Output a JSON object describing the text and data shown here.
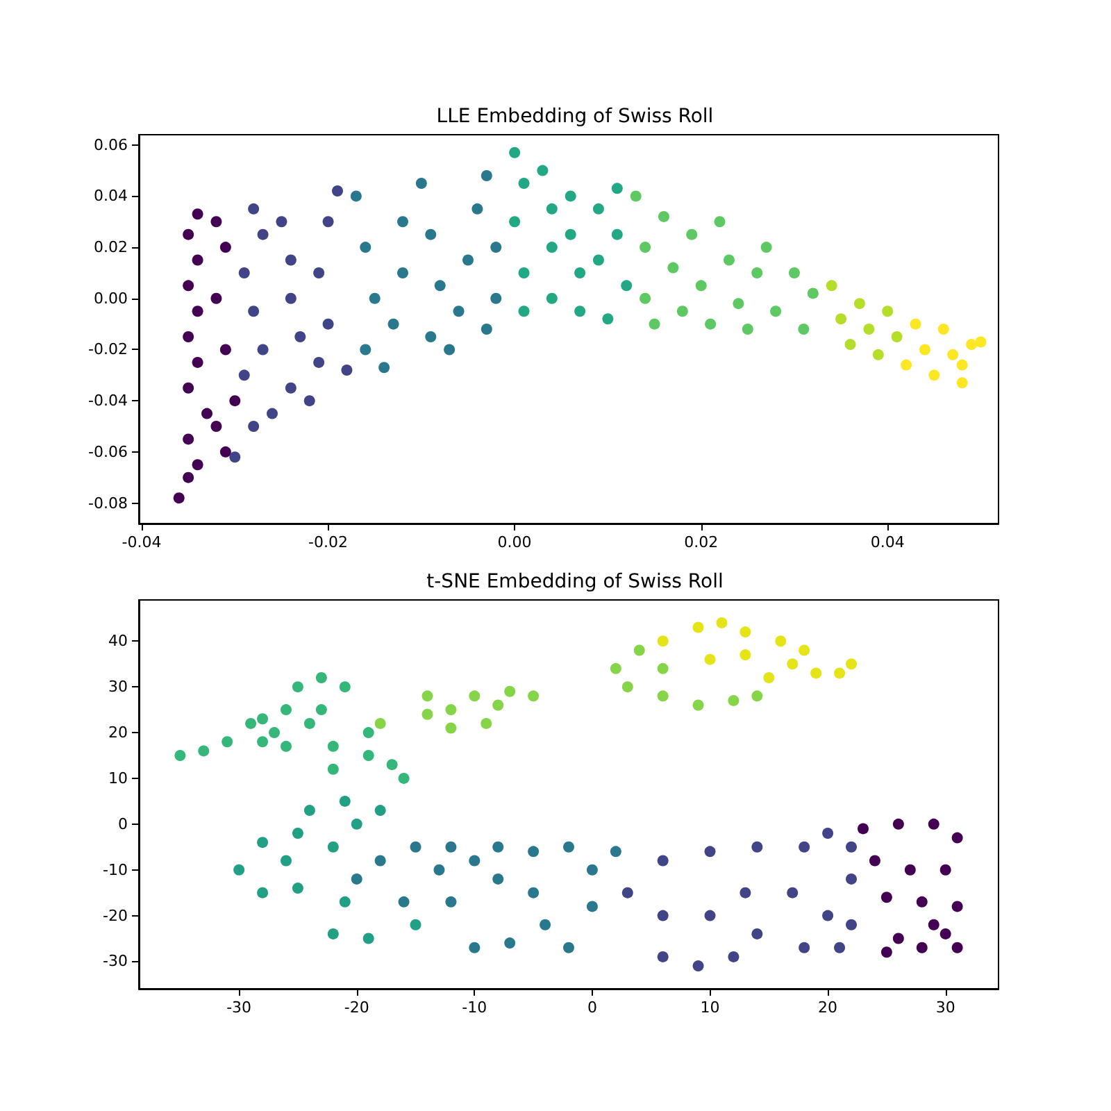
{
  "chart_data": [
    {
      "type": "scatter",
      "title": "LLE Embedding of Swiss Roll",
      "marker": "circle",
      "xlim": [
        -0.0403,
        0.0519
      ],
      "ylim": [
        -0.088,
        0.064
      ],
      "xticks": [
        -0.04,
        -0.02,
        {
          "value": 0,
          "label": "0.00"
        },
        0.02,
        0.04
      ],
      "yticks": [
        -0.08,
        -0.06,
        -0.04,
        -0.02,
        {
          "value": 0,
          "label": "0.00"
        },
        0.02,
        0.04,
        0.06
      ],
      "series": [
        {
          "color": "#440154",
          "x": [
            -0.036,
            -0.035,
            -0.034,
            -0.035,
            -0.033,
            -0.035,
            -0.034,
            -0.035,
            -0.034,
            -0.035,
            -0.034,
            -0.035,
            -0.034,
            -0.032,
            -0.031,
            -0.032,
            -0.03,
            -0.031,
            -0.032,
            -0.031
          ],
          "values": [
            -0.078,
            -0.07,
            -0.065,
            -0.055,
            -0.045,
            -0.035,
            -0.025,
            -0.015,
            -0.005,
            0.005,
            0.015,
            0.025,
            0.033,
            0.03,
            -0.06,
            -0.05,
            -0.04,
            -0.02,
            0.0,
            0.02
          ]
        },
        {
          "color": "#414487",
          "x": [
            -0.03,
            -0.028,
            -0.026,
            -0.029,
            -0.027,
            -0.028,
            -0.029,
            -0.027,
            -0.028,
            -0.025,
            -0.024,
            -0.024,
            -0.023,
            -0.024,
            -0.022,
            -0.021,
            -0.02,
            -0.021,
            -0.02,
            -0.019,
            -0.018
          ],
          "values": [
            -0.062,
            -0.05,
            -0.045,
            -0.03,
            -0.02,
            -0.005,
            0.01,
            0.025,
            0.035,
            0.03,
            0.015,
            0.0,
            -0.015,
            -0.035,
            -0.04,
            -0.025,
            -0.01,
            0.01,
            0.03,
            0.042,
            -0.028
          ]
        },
        {
          "color": "#2a788e",
          "x": [
            -0.017,
            -0.016,
            -0.015,
            -0.016,
            -0.014,
            -0.013,
            -0.012,
            -0.012,
            -0.01,
            -0.009,
            -0.008,
            -0.009,
            -0.007,
            -0.006,
            -0.005,
            -0.004,
            -0.003,
            -0.002,
            -0.002,
            -0.003
          ],
          "values": [
            0.04,
            0.02,
            0.0,
            -0.02,
            -0.027,
            -0.01,
            0.01,
            0.03,
            0.045,
            0.025,
            0.005,
            -0.015,
            -0.02,
            -0.005,
            0.015,
            0.035,
            0.048,
            0.02,
            0.0,
            -0.012
          ]
        },
        {
          "color": "#22a884",
          "x": [
            0.0,
            0.001,
            0.0,
            0.001,
            0.001,
            0.003,
            0.004,
            0.004,
            0.004,
            0.006,
            0.006,
            0.007,
            0.007,
            0.009,
            0.009,
            0.01,
            0.011,
            0.011,
            0.012
          ],
          "values": [
            0.057,
            0.045,
            0.03,
            0.01,
            -0.005,
            0.05,
            0.035,
            0.02,
            0.0,
            0.04,
            0.025,
            0.01,
            -0.005,
            0.035,
            0.015,
            -0.008,
            0.043,
            0.025,
            0.005
          ]
        },
        {
          "color": "#5ec962",
          "x": [
            0.013,
            0.014,
            0.014,
            0.015,
            0.016,
            0.017,
            0.018,
            0.019,
            0.02,
            0.021,
            0.022,
            0.023,
            0.024,
            0.025,
            0.026,
            0.027,
            0.028,
            0.03,
            0.031,
            0.032
          ],
          "values": [
            0.04,
            0.02,
            0.0,
            -0.01,
            0.032,
            0.012,
            -0.005,
            0.025,
            0.005,
            -0.01,
            0.03,
            0.015,
            -0.002,
            -0.012,
            0.01,
            0.02,
            -0.005,
            0.01,
            -0.012,
            0.002
          ]
        },
        {
          "color": "#b5de2b",
          "x": [
            0.034,
            0.035,
            0.036,
            0.037,
            0.038,
            0.039,
            0.04,
            0.041
          ],
          "values": [
            0.005,
            -0.008,
            -0.018,
            -0.002,
            -0.012,
            -0.022,
            -0.005,
            -0.015
          ]
        },
        {
          "color": "#fde725",
          "x": [
            0.042,
            0.043,
            0.044,
            0.045,
            0.046,
            0.047,
            0.048,
            0.049,
            0.05,
            0.048
          ],
          "values": [
            -0.026,
            -0.01,
            -0.02,
            -0.03,
            -0.012,
            -0.022,
            -0.033,
            -0.018,
            -0.017,
            -0.026
          ]
        }
      ]
    },
    {
      "type": "scatter",
      "title": "t-SNE Embedding of Swiss Roll",
      "marker": "circle",
      "xlim": [
        -38.5,
        34.5
      ],
      "ylim": [
        -36,
        49
      ],
      "xticks": [
        -30,
        -20,
        -10,
        0,
        10,
        20,
        30
      ],
      "yticks": [
        -30,
        -20,
        -10,
        0,
        10,
        20,
        30,
        40
      ],
      "series": [
        {
          "color": "#440154",
          "x": [
            23,
            26,
            29,
            31,
            30,
            31,
            30,
            31,
            28,
            26,
            28,
            27,
            24,
            25,
            29,
            25
          ],
          "values": [
            -1,
            0,
            0,
            -3,
            -10,
            -18,
            -24,
            -27,
            -27,
            -25,
            -17,
            -10,
            -8,
            -16,
            -22,
            -28
          ]
        },
        {
          "color": "#414487",
          "x": [
            20,
            22,
            18,
            14,
            10,
            6,
            22,
            20,
            17,
            21,
            18,
            14,
            12,
            9,
            6,
            10,
            13,
            6,
            3,
            22
          ],
          "values": [
            -2,
            -5,
            -5,
            -5,
            -6,
            -8,
            -12,
            -20,
            -15,
            -27,
            -27,
            -24,
            -29,
            -31,
            -29,
            -20,
            -15,
            -20,
            -15,
            -22
          ]
        },
        {
          "color": "#2a788e",
          "x": [
            0,
            -2,
            -5,
            -8,
            -10,
            -12,
            -15,
            -18,
            -20,
            -16,
            -12,
            -5,
            -4,
            -2,
            -7,
            -10,
            0,
            -8,
            -13,
            2
          ],
          "values": [
            -10,
            -5,
            -6,
            -5,
            -8,
            -5,
            -5,
            -8,
            -12,
            -17,
            -17,
            -15,
            -22,
            -27,
            -26,
            -27,
            -18,
            -12,
            -10,
            -6
          ]
        },
        {
          "color": "#21a085",
          "x": [
            -22,
            -25,
            -28,
            -30,
            -28,
            -25,
            -21,
            -22,
            -19,
            -24,
            -21,
            -18,
            -20,
            -26,
            -15
          ],
          "values": [
            -5,
            -2,
            -4,
            -10,
            -15,
            -14,
            -17,
            -24,
            -25,
            3,
            5,
            3,
            0,
            -8,
            -22
          ]
        },
        {
          "color": "#35b779",
          "x": [
            -35,
            -33,
            -31,
            -28,
            -26,
            -27,
            -29,
            -24,
            -22,
            -19,
            -17,
            -16,
            -22,
            -26,
            -23,
            -25,
            -23,
            -21,
            -28,
            -19
          ],
          "values": [
            15,
            16,
            18,
            18,
            17,
            20,
            22,
            22,
            17,
            15,
            13,
            10,
            12,
            25,
            25,
            30,
            32,
            30,
            23,
            20
          ]
        },
        {
          "color": "#86d549",
          "x": [
            -18,
            -14,
            -12,
            -10,
            -8,
            -7,
            -5,
            -14,
            -9,
            -12,
            2,
            4,
            3,
            6,
            9,
            12,
            14,
            6
          ],
          "values": [
            22,
            24,
            25,
            28,
            26,
            29,
            28,
            28,
            22,
            21,
            34,
            38,
            30,
            28,
            26,
            27,
            28,
            34
          ]
        },
        {
          "color": "#e5e419",
          "x": [
            6,
            9,
            11,
            13,
            16,
            13,
            10,
            17,
            19,
            21,
            22,
            18,
            15
          ],
          "values": [
            40,
            43,
            44,
            42,
            40,
            37,
            36,
            35,
            33,
            33,
            35,
            38,
            32
          ]
        }
      ]
    }
  ]
}
